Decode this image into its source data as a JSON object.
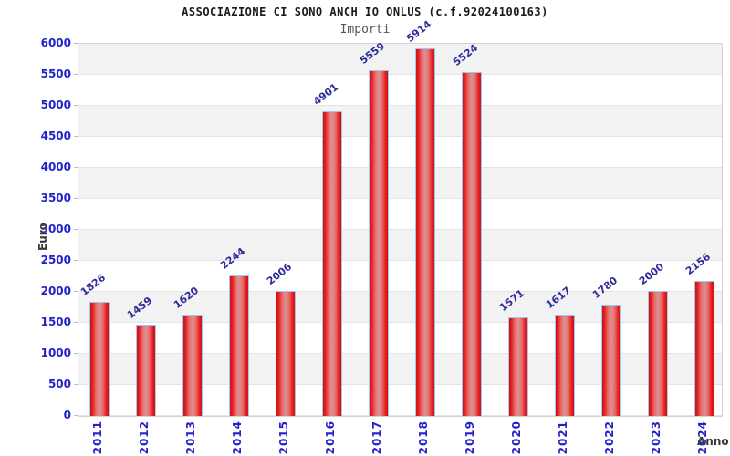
{
  "header": {
    "title": "ASSOCIAZIONE CI SONO ANCH IO ONLUS (c.f.92024100163)",
    "subtitle": "Importi"
  },
  "chart_data": {
    "type": "bar",
    "title": "ASSOCIAZIONE CI SONO ANCH IO ONLUS (c.f.92024100163)",
    "subtitle": "Importi",
    "xlabel": "Anno",
    "ylabel": "Euro",
    "categories": [
      "2011",
      "2012",
      "2013",
      "2014",
      "2015",
      "2016",
      "2017",
      "2018",
      "2019",
      "2020",
      "2021",
      "2022",
      "2023",
      "2024"
    ],
    "values": [
      1826,
      1459,
      1620,
      2244,
      2006,
      4901,
      5559,
      5914,
      5524,
      1571,
      1617,
      1780,
      2000,
      2156
    ],
    "ylim": [
      0,
      6000
    ],
    "ytick_step": 500,
    "y_ticks": [
      0,
      500,
      1000,
      1500,
      2000,
      2500,
      3000,
      3500,
      4000,
      4500,
      5000,
      5500,
      6000
    ],
    "grid": "horizontal-bands",
    "legend": "none",
    "colors": {
      "bar_fill_edge": "#e81c1c",
      "bar_fill_center": "#d69494",
      "bar_border": "#9ec7f2",
      "tick_label": "#2222cc",
      "value_label": "#2c2c9c",
      "band_gray": "#f2f2f2",
      "band_white": "#ffffff",
      "gridline": "#e3e3e3",
      "title_color": "#1a1a1a",
      "subtitle_color": "#555555",
      "axis_title_color": "#3a3a3a"
    }
  }
}
